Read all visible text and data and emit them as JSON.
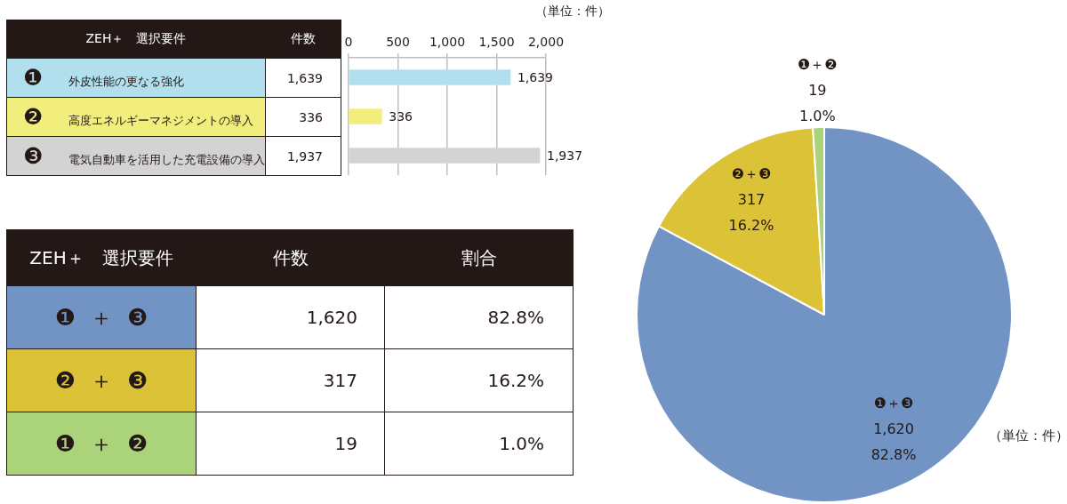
{
  "chart_data": [
    {
      "type": "bar",
      "orientation": "horizontal",
      "ylabel": "ZEH＋　選択要件",
      "xlabel": "件数",
      "categories": [
        "❶ 外皮性能の更なる強化",
        "❷ 高度エネルギーマネジメントの導入",
        "❸ 電気自動車を活用した充電設備の導入"
      ],
      "values": [
        1639,
        336,
        1937
      ],
      "colors": [
        "#b2dfee",
        "#f2ee7d",
        "#d3d3d3"
      ],
      "xlim": [
        0,
        2000
      ],
      "xticks": [
        0,
        500,
        {
          "value": 1000,
          "label": "1,000"
        },
        {
          "value": 1500,
          "label": "1,500"
        },
        {
          "value": 2000,
          "label": "2,000"
        }
      ],
      "grid": "x",
      "value_labels": [
        "1,639",
        "336",
        "1,937"
      ],
      "annotations": [
        "（単位：件）"
      ]
    },
    {
      "type": "pie",
      "categories": [
        "❶＋❸",
        "❷＋❸",
        "❶＋❷"
      ],
      "values": [
        1620,
        317,
        19
      ],
      "colors": [
        "#7294c4",
        "#dcc236",
        "#abd47a"
      ],
      "value_labels": [
        "1,620\n82.8%",
        "317\n16.2%",
        "19\n1.0%"
      ],
      "annotations": [
        "ZEH＋　選択要件",
        "件数",
        "割合",
        "（単位：件）"
      ]
    }
  ]
}
